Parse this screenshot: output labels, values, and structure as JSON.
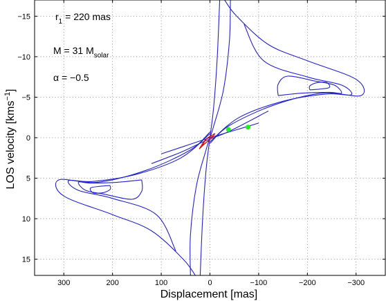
{
  "chart_data": {
    "type": "contour",
    "xlabel": "Displacement [mas]",
    "ylabel": {
      "main": "LOS velocity [kms",
      "sup": "−1",
      "end": "]"
    },
    "xlim": [
      360,
      -360
    ],
    "ylim": [
      -17,
      17
    ],
    "x_inverted": true,
    "y_inverted": true,
    "x_ticks": [
      300,
      200,
      100,
      0,
      -100,
      -200,
      -300
    ],
    "x_ticklabels": [
      "300",
      "200",
      "100",
      "0",
      "−100",
      "−200",
      "−300"
    ],
    "y_ticks": [
      -15,
      -10,
      -5,
      0,
      5,
      10,
      15
    ],
    "y_ticklabels": [
      "−15",
      "−10",
      "−5",
      "0",
      "5",
      "10",
      "15"
    ],
    "grid": true,
    "annotations": [
      {
        "name": "r1",
        "main": "r",
        "sub": "1",
        "rest": " = 220 mas"
      },
      {
        "name": "mass",
        "main": "M = 31 M",
        "sub": "solar",
        "rest": ""
      },
      {
        "name": "alpha",
        "main": "α = −0.5",
        "sub": "",
        "rest": ""
      }
    ],
    "contour_color": "#2222cc",
    "core_color": "#dd0000",
    "marker_color": "#22ee22",
    "markers": [
      {
        "x": -38,
        "y": -1.0
      },
      {
        "x": -78,
        "y": -1.3
      }
    ],
    "contours": [
      {
        "name": "outer-spine",
        "color": "#2222cc",
        "points": [
          [
            40,
            17
          ],
          [
            40,
            12
          ],
          [
            28,
            6
          ],
          [
            8,
            1.5
          ],
          [
            0,
            0
          ],
          [
            -8,
            -1.5
          ],
          [
            -28,
            -6
          ],
          [
            -40,
            -12
          ],
          [
            -42,
            -17
          ]
        ]
      },
      {
        "name": "spine-2",
        "color": "#2222cc",
        "points": [
          [
            20,
            17
          ],
          [
            15,
            10
          ],
          [
            8,
            4
          ],
          [
            0,
            0
          ],
          [
            -8,
            -4
          ],
          [
            -15,
            -10
          ],
          [
            -20,
            -17
          ]
        ]
      },
      {
        "name": "outer-left-lobe",
        "color": "#2222cc",
        "points": [
          [
            0,
            0.7
          ],
          [
            -40,
            -1.5
          ],
          [
            -130,
            -4
          ],
          [
            -230,
            -5.5
          ],
          [
            -310,
            -5.2
          ],
          [
            -300,
            -7.2
          ],
          [
            -200,
            -9.5
          ],
          [
            -120,
            -11.5
          ],
          [
            -55,
            -15
          ],
          [
            -30,
            -17
          ]
        ]
      },
      {
        "name": "mid-left-lobe",
        "color": "#2222cc",
        "points": [
          [
            0,
            0.5
          ],
          [
            -60,
            -2.5
          ],
          [
            -150,
            -4.5
          ],
          [
            -240,
            -5.4
          ],
          [
            -290,
            -5.3
          ],
          [
            -270,
            -6.5
          ],
          [
            -200,
            -7.5
          ],
          [
            -110,
            -9.5
          ],
          [
            -70,
            -14
          ]
        ]
      },
      {
        "name": "inner-left-lobe",
        "color": "#2222cc",
        "points": [
          [
            -140,
            -5.2
          ],
          [
            -190,
            -5.5
          ],
          [
            -245,
            -5.6
          ],
          [
            -270,
            -5.5
          ],
          [
            -255,
            -6.5
          ],
          [
            -215,
            -7.0
          ],
          [
            -160,
            -7.6
          ],
          [
            -140,
            -6.6
          ],
          [
            -140,
            -5.2
          ]
        ]
      },
      {
        "name": "core-left-lobe",
        "color": "#2222cc",
        "points": [
          [
            -205,
            -5.9
          ],
          [
            -225,
            -6.0
          ],
          [
            -245,
            -6.2
          ],
          [
            -240,
            -6.8
          ],
          [
            -220,
            -6.8
          ],
          [
            -205,
            -6.4
          ],
          [
            -205,
            -5.9
          ]
        ]
      },
      {
        "name": "outer-right-lobe",
        "color": "#2222cc",
        "points": [
          [
            0,
            -0.7
          ],
          [
            40,
            1.5
          ],
          [
            130,
            4
          ],
          [
            230,
            5.5
          ],
          [
            310,
            5.2
          ],
          [
            300,
            7.2
          ],
          [
            200,
            9.5
          ],
          [
            120,
            11.5
          ],
          [
            55,
            15
          ],
          [
            30,
            17
          ]
        ]
      },
      {
        "name": "mid-right-lobe",
        "color": "#2222cc",
        "points": [
          [
            0,
            -0.5
          ],
          [
            60,
            2.5
          ],
          [
            150,
            4.5
          ],
          [
            240,
            5.4
          ],
          [
            290,
            5.3
          ],
          [
            270,
            6.5
          ],
          [
            200,
            7.5
          ],
          [
            110,
            9.5
          ],
          [
            70,
            14
          ]
        ]
      },
      {
        "name": "inner-right-lobe",
        "color": "#2222cc",
        "points": [
          [
            140,
            5.2
          ],
          [
            190,
            5.5
          ],
          [
            245,
            5.6
          ],
          [
            270,
            5.5
          ],
          [
            255,
            6.5
          ],
          [
            215,
            7.0
          ],
          [
            160,
            7.6
          ],
          [
            140,
            6.6
          ],
          [
            140,
            5.2
          ]
        ]
      },
      {
        "name": "core-right-lobe",
        "color": "#2222cc",
        "points": [
          [
            205,
            5.9
          ],
          [
            225,
            6.0
          ],
          [
            245,
            6.2
          ],
          [
            240,
            6.8
          ],
          [
            220,
            6.8
          ],
          [
            205,
            6.4
          ],
          [
            205,
            5.9
          ]
        ]
      },
      {
        "name": "diagonal-band-upper",
        "color": "#2222cc",
        "points": [
          [
            120,
            3.2
          ],
          [
            60,
            1.8
          ],
          [
            10,
            0.4
          ],
          [
            -40,
            -0.8
          ],
          [
            -120,
            -3.3
          ]
        ]
      },
      {
        "name": "diagonal-band-lower",
        "color": "#2222cc",
        "points": [
          [
            100,
            2.0
          ],
          [
            50,
            1.0
          ],
          [
            0,
            0
          ],
          [
            -50,
            -0.9
          ],
          [
            -100,
            -1.8
          ]
        ]
      },
      {
        "name": "core-red-1",
        "color": "#dd0000",
        "points": [
          [
            22,
            1.4
          ],
          [
            10,
            0.7
          ],
          [
            -2,
            0.1
          ],
          [
            -10,
            -0.5
          ],
          [
            -2,
            -0.2
          ],
          [
            10,
            0.3
          ],
          [
            22,
            1.4
          ]
        ]
      },
      {
        "name": "core-red-2",
        "color": "#dd0000",
        "points": [
          [
            16,
            1.0
          ],
          [
            6,
            0.5
          ],
          [
            -4,
            0.0
          ],
          [
            -2,
            -0.2
          ],
          [
            8,
            0.2
          ],
          [
            16,
            1.0
          ]
        ]
      }
    ]
  }
}
